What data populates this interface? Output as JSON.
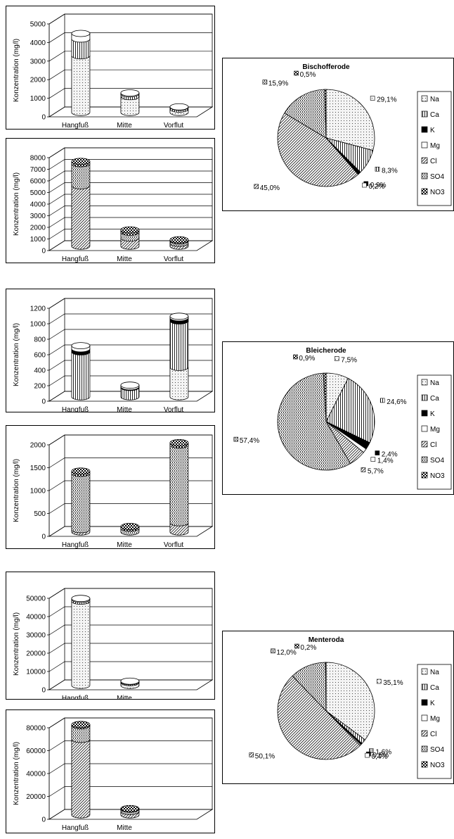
{
  "fills": {
    "Na": "dots",
    "Ca": "vlines",
    "K": "solid",
    "Mg": "white",
    "Cl": "diag",
    "SO4": "dense",
    "NO3": "check"
  },
  "chart_data": [
    {
      "type": "bar",
      "ylabel": "Konzentration (mg/l)",
      "ylim": [
        0,
        5000
      ],
      "yticks": [
        0,
        1000,
        2000,
        3000,
        4000,
        5000
      ],
      "categories": [
        "Hangfuß",
        "Mitte",
        "Vorflut"
      ],
      "series": [
        {
          "name": "Na",
          "values": [
            3050,
            850,
            180
          ]
        },
        {
          "name": "Ca",
          "values": [
            900,
            150,
            100
          ]
        },
        {
          "name": "Mg",
          "values": [
            300,
            50,
            20
          ]
        }
      ]
    },
    {
      "type": "bar",
      "ylabel": "Konzentration (mg/l)",
      "ylim": [
        0,
        8000
      ],
      "yticks": [
        0,
        1000,
        2000,
        3000,
        4000,
        5000,
        6000,
        7000,
        8000
      ],
      "categories": [
        "Hangfuß",
        "Mitte",
        "Vorflut"
      ],
      "series": [
        {
          "name": "Cl",
          "values": [
            5200,
            700,
            250
          ]
        },
        {
          "name": "SO4",
          "values": [
            1900,
            500,
            200
          ]
        },
        {
          "name": "NO3",
          "values": [
            200,
            200,
            100
          ]
        }
      ]
    },
    {
      "type": "pie",
      "title": "Bischofferode",
      "slices": [
        {
          "name": "Na",
          "value": 29.1,
          "label": "29,1%"
        },
        {
          "name": "Ca",
          "value": 8.3,
          "label": "8,3%"
        },
        {
          "name": "K",
          "value": 0.9,
          "label": "0,9%"
        },
        {
          "name": "Mg",
          "value": 0.2,
          "label": "0,2%"
        },
        {
          "name": "Cl",
          "value": 45.0,
          "label": "45,0%"
        },
        {
          "name": "SO4",
          "value": 15.9,
          "label": "15,9%"
        },
        {
          "name": "NO3",
          "value": 0.5,
          "label": "0,5%"
        }
      ],
      "legend": [
        "Na",
        "Ca",
        "K",
        "Mg",
        "Cl",
        "SO4",
        "NO3"
      ]
    },
    {
      "type": "bar",
      "ylabel": "Konzentration (mg/l)",
      "ylim": [
        0,
        1200
      ],
      "yticks": [
        0,
        200,
        400,
        600,
        800,
        1000,
        1200
      ],
      "categories": [
        "Hangfuß",
        "Mitte",
        "Vorflut"
      ],
      "series": [
        {
          "name": "Na",
          "values": [
            0,
            0,
            380
          ]
        },
        {
          "name": "Ca",
          "values": [
            580,
            120,
            600
          ]
        },
        {
          "name": "K",
          "values": [
            40,
            10,
            40
          ]
        },
        {
          "name": "Mg",
          "values": [
            40,
            20,
            20
          ]
        }
      ]
    },
    {
      "type": "bar",
      "ylabel": "Konzentration (mg/l)",
      "ylim": [
        0,
        2000
      ],
      "yticks": [
        0,
        500,
        1000,
        1500,
        2000
      ],
      "categories": [
        "Hangfuß",
        "Mitte",
        "Vorflut"
      ],
      "series": [
        {
          "name": "Cl",
          "values": [
            50,
            0,
            200
          ]
        },
        {
          "name": "SO4",
          "values": [
            1230,
            80,
            1700
          ]
        },
        {
          "name": "NO3",
          "values": [
            50,
            40,
            50
          ]
        }
      ]
    },
    {
      "type": "pie",
      "title": "Bleicherode",
      "slices": [
        {
          "name": "Na",
          "value": 7.5,
          "label": "7,5%"
        },
        {
          "name": "Ca",
          "value": 24.6,
          "label": "24,6%"
        },
        {
          "name": "K",
          "value": 2.4,
          "label": "2,4%"
        },
        {
          "name": "Mg",
          "value": 1.4,
          "label": "1,4%"
        },
        {
          "name": "Cl",
          "value": 5.7,
          "label": "5,7%"
        },
        {
          "name": "SO4",
          "value": 57.4,
          "label": "57,4%"
        },
        {
          "name": "NO3",
          "value": 0.9,
          "label": "0,9%"
        }
      ],
      "legend": [
        "Na",
        "Ca",
        "K",
        "Mg",
        "Cl",
        "SO4",
        "NO3"
      ]
    },
    {
      "type": "bar",
      "ylabel": "Konzentration (mg/l)",
      "ylim": [
        0,
        50000
      ],
      "yticks": [
        0,
        10000,
        20000,
        30000,
        40000,
        50000
      ],
      "categories": [
        "Hangfuß",
        "Mitte"
      ],
      "series": [
        {
          "name": "Na",
          "values": [
            46000,
            1500
          ]
        },
        {
          "name": "Ca",
          "values": [
            1000,
            500
          ]
        },
        {
          "name": "Mg",
          "values": [
            500,
            300
          ]
        }
      ]
    },
    {
      "type": "bar",
      "ylabel": "Konzentration (mg/l)",
      "ylim": [
        0,
        80000
      ],
      "yticks": [
        0,
        20000,
        40000,
        60000,
        80000
      ],
      "categories": [
        "Hangfuß",
        "Mitte"
      ],
      "series": [
        {
          "name": "Cl",
          "values": [
            66000,
            3000
          ]
        },
        {
          "name": "SO4",
          "values": [
            12000,
            2000
          ]
        },
        {
          "name": "NO3",
          "values": [
            1000,
            500
          ]
        }
      ]
    },
    {
      "type": "pie",
      "title": "Menteroda",
      "slices": [
        {
          "name": "Na",
          "value": 35.1,
          "label": "35,1%"
        },
        {
          "name": "Ca",
          "value": 1.6,
          "label": "1,6%"
        },
        {
          "name": "K",
          "value": 0.5,
          "label": "0,5%"
        },
        {
          "name": "Mg",
          "value": 0.4,
          "label": "0,4%"
        },
        {
          "name": "Cl",
          "value": 50.1,
          "label": "50,1%"
        },
        {
          "name": "SO4",
          "value": 12.0,
          "label": "12,0%"
        },
        {
          "name": "NO3",
          "value": 0.2,
          "label": "0,2%"
        }
      ],
      "legend": [
        "Na",
        "Ca",
        "K",
        "Mg",
        "Cl",
        "SO4",
        "NO3"
      ]
    }
  ]
}
